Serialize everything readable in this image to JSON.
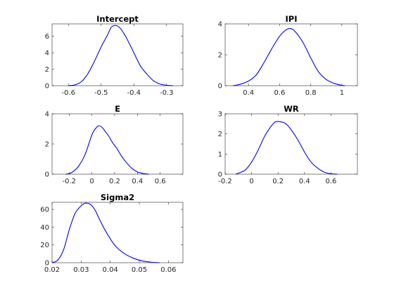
{
  "colors": {
    "line": "#0000ff",
    "axes": "#262626",
    "background": "#ffffff"
  },
  "chart_data": [
    {
      "type": "line",
      "title": "Intercept",
      "xlim": [
        -0.65,
        -0.25
      ],
      "ylim": [
        0,
        7.5
      ],
      "xticks": [
        -0.6,
        -0.5,
        -0.4,
        -0.3
      ],
      "xtick_labels": [
        "-0.6",
        "-0.5",
        "-0.4",
        "-0.3"
      ],
      "yticks": [
        0,
        2,
        4,
        6
      ],
      "ytick_labels": [
        "0",
        "2",
        "4",
        "6"
      ],
      "grid": false,
      "legend": "none",
      "series": [
        {
          "x": [
            -0.6,
            -0.58,
            -0.56,
            -0.54,
            -0.52,
            -0.5,
            -0.48,
            -0.47,
            -0.46,
            -0.45,
            -0.44,
            -0.43,
            -0.42,
            -0.4,
            -0.38,
            -0.36,
            -0.34,
            -0.32,
            -0.3,
            -0.28
          ],
          "y": [
            0.0,
            0.1,
            0.5,
            1.5,
            3.0,
            4.7,
            6.2,
            7.05,
            7.3,
            7.25,
            6.9,
            6.3,
            5.6,
            4.0,
            2.4,
            1.4,
            0.6,
            0.2,
            0.05,
            0.0
          ]
        }
      ]
    },
    {
      "type": "line",
      "title": "IPI",
      "xlim": [
        0.25,
        1.1
      ],
      "ylim": [
        0,
        4
      ],
      "xticks": [
        0.4,
        0.6,
        0.8,
        1.0
      ],
      "xtick_labels": [
        "0.4",
        "0.6",
        "0.8",
        "1"
      ],
      "yticks": [
        0,
        2,
        4
      ],
      "ytick_labels": [
        "0",
        "2",
        "4"
      ],
      "grid": false,
      "legend": "none",
      "series": [
        {
          "x": [
            0.3,
            0.35,
            0.4,
            0.45,
            0.5,
            0.55,
            0.6,
            0.64,
            0.67,
            0.7,
            0.75,
            0.8,
            0.85,
            0.9,
            0.95,
            1.0,
            1.02
          ],
          "y": [
            0.0,
            0.1,
            0.3,
            0.7,
            1.5,
            2.4,
            3.2,
            3.6,
            3.7,
            3.5,
            2.8,
            1.8,
            0.9,
            0.4,
            0.15,
            0.02,
            0.0
          ]
        }
      ]
    },
    {
      "type": "line",
      "title": "E",
      "xlim": [
        -0.35,
        0.8
      ],
      "ylim": [
        0,
        4
      ],
      "xticks": [
        -0.2,
        0,
        0.2,
        0.4,
        0.6
      ],
      "xtick_labels": [
        "-0.2",
        "0",
        "0.2",
        "0.4",
        "0.6"
      ],
      "yticks": [
        0,
        2,
        4
      ],
      "ytick_labels": [
        "0",
        "2",
        "4"
      ],
      "grid": false,
      "legend": "none",
      "series": [
        {
          "x": [
            -0.23,
            -0.18,
            -0.12,
            -0.06,
            0.0,
            0.03,
            0.06,
            0.09,
            0.12,
            0.15,
            0.18,
            0.22,
            0.26,
            0.3,
            0.35,
            0.4,
            0.45,
            0.5
          ],
          "y": [
            0.0,
            0.1,
            0.5,
            1.3,
            2.6,
            3.0,
            3.2,
            3.1,
            2.8,
            2.5,
            2.1,
            1.7,
            1.2,
            0.8,
            0.4,
            0.15,
            0.05,
            0.0
          ]
        }
      ]
    },
    {
      "type": "line",
      "title": "WR",
      "xlim": [
        -0.2,
        0.8
      ],
      "ylim": [
        0,
        3
      ],
      "xticks": [
        -0.2,
        0,
        0.2,
        0.4,
        0.6
      ],
      "xtick_labels": [
        "-0.2",
        "0",
        "0.2",
        "0.4",
        "0.6"
      ],
      "yticks": [
        0,
        1,
        2,
        3
      ],
      "ytick_labels": [
        "0",
        "1",
        "2",
        "3"
      ],
      "grid": false,
      "legend": "none",
      "series": [
        {
          "x": [
            -0.12,
            -0.05,
            0.0,
            0.05,
            0.1,
            0.15,
            0.18,
            0.22,
            0.26,
            0.3,
            0.35,
            0.4,
            0.45,
            0.5,
            0.55,
            0.6,
            0.65
          ],
          "y": [
            0.0,
            0.2,
            0.6,
            1.2,
            1.9,
            2.4,
            2.6,
            2.6,
            2.5,
            2.2,
            1.7,
            1.1,
            0.6,
            0.3,
            0.1,
            0.02,
            0.0
          ]
        }
      ]
    },
    {
      "type": "line",
      "title": "Sigma2",
      "xlim": [
        0.02,
        0.065
      ],
      "ylim": [
        0,
        68
      ],
      "xticks": [
        0.02,
        0.03,
        0.04,
        0.05,
        0.06
      ],
      "xtick_labels": [
        "0.02",
        "0.03",
        "0.04",
        "0.05",
        "0.06"
      ],
      "yticks": [
        0,
        20,
        40,
        60
      ],
      "ytick_labels": [
        "0",
        "20",
        "40",
        "60"
      ],
      "grid": false,
      "legend": "none",
      "series": [
        {
          "x": [
            0.02,
            0.022,
            0.024,
            0.026,
            0.028,
            0.03,
            0.031,
            0.032,
            0.033,
            0.034,
            0.035,
            0.036,
            0.038,
            0.04,
            0.042,
            0.045,
            0.048,
            0.051,
            0.054,
            0.057
          ],
          "y": [
            0,
            3,
            15,
            38,
            56,
            64,
            66.5,
            67,
            66,
            63,
            58,
            51,
            38,
            27,
            18,
            10,
            5,
            2,
            0.6,
            0
          ]
        }
      ]
    }
  ]
}
